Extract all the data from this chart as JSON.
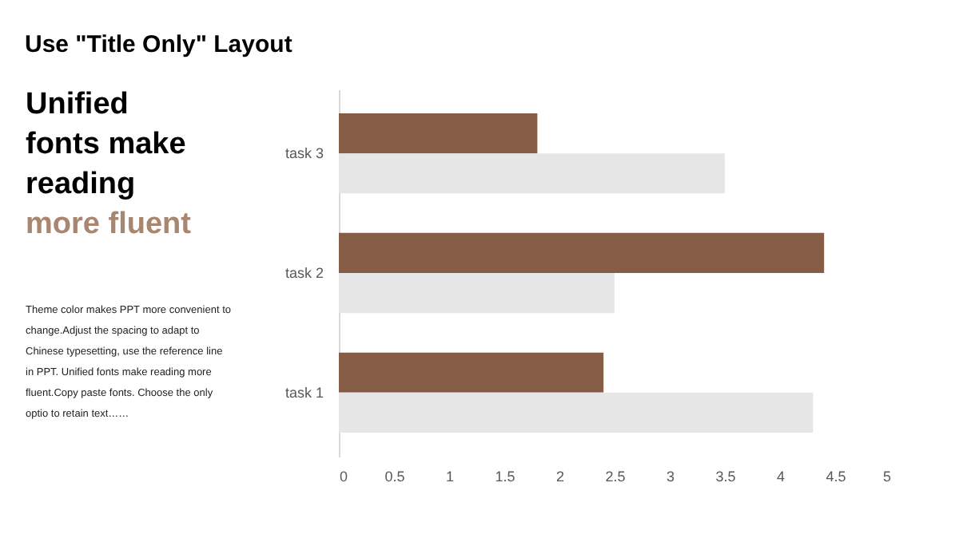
{
  "chart_data": {
    "type": "bar",
    "orientation": "horizontal",
    "title": "Use \"Title Only\" Layout",
    "annotations": [
      "Unified fonts make reading",
      "more fluent",
      "Theme  color makes PPT more convenient to change.Adjust the spacing to adapt to Chinese typesetting, use the reference line in PPT. Unified fonts make reading more fluent.Copy paste fonts. Choose the only optio to retain text……"
    ],
    "categories": [
      "task 3",
      "task 2",
      "task 1"
    ],
    "series": [
      {
        "color": "#855c45",
        "values": [
          1.8,
          4.4,
          2.4
        ]
      },
      {
        "color": "#e6e6e6",
        "values": [
          3.5,
          2.5,
          4.3
        ]
      }
    ],
    "xlim": [
      0,
      5
    ],
    "xticks": [
      0,
      0.5,
      1,
      1.5,
      2,
      2.5,
      3,
      3.5,
      4,
      4.5,
      5
    ],
    "grid": false,
    "legend": false
  }
}
